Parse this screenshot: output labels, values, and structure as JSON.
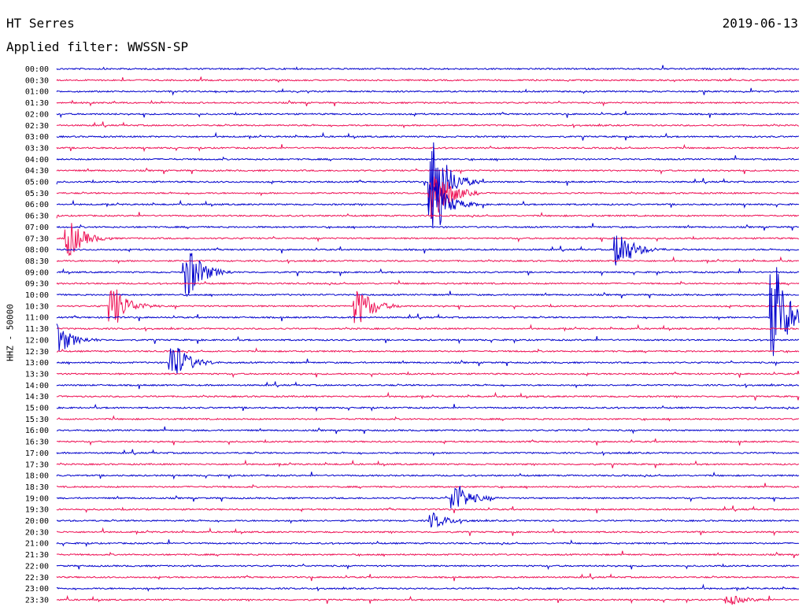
{
  "header": {
    "station": "HT Serres",
    "date": "2019-06-13",
    "filter": "Applied filter: WWSSN-SP"
  },
  "chart_data": {
    "type": "line",
    "ylabel": "HHZ - 50000",
    "row_labels": [
      "00:00",
      "00:30",
      "01:00",
      "01:30",
      "02:00",
      "02:30",
      "03:00",
      "03:30",
      "04:00",
      "04:30",
      "05:00",
      "05:30",
      "06:00",
      "06:30",
      "07:00",
      "07:30",
      "08:00",
      "08:30",
      "09:00",
      "09:30",
      "10:00",
      "10:30",
      "11:00",
      "11:30",
      "12:00",
      "12:30",
      "13:00",
      "13:30",
      "14:00",
      "14:30",
      "15:00",
      "15:30",
      "16:00",
      "16:30",
      "17:00",
      "17:30",
      "18:00",
      "18:30",
      "19:00",
      "19:30",
      "20:00",
      "20:30",
      "21:00",
      "21:30",
      "22:00",
      "22:30",
      "23:00",
      "23:30"
    ],
    "colors": {
      "even_rows": "#0000cc",
      "odd_rows": "#ee1155"
    },
    "events": [
      {
        "row": 10,
        "t": 0.51,
        "amp": 3.0
      },
      {
        "row": 11,
        "t": 0.51,
        "amp": 2.4
      },
      {
        "row": 12,
        "t": 0.51,
        "amp": 1.8
      },
      {
        "row": 15,
        "t": 0.02,
        "amp": 1.2
      },
      {
        "row": 16,
        "t": 0.76,
        "amp": 1.3
      },
      {
        "row": 18,
        "t": 0.18,
        "amp": 1.7
      },
      {
        "row": 21,
        "t": 0.08,
        "amp": 1.3
      },
      {
        "row": 21,
        "t": 0.41,
        "amp": 1.2
      },
      {
        "row": 22,
        "t": 0.97,
        "amp": 3.5
      },
      {
        "row": 24,
        "t": 0.0,
        "amp": 1.2
      },
      {
        "row": 26,
        "t": 0.16,
        "amp": 1.4
      },
      {
        "row": 38,
        "t": 0.54,
        "amp": 1.0
      },
      {
        "row": 40,
        "t": 0.51,
        "amp": 0.5
      },
      {
        "row": 47,
        "t": 0.91,
        "amp": 0.3
      }
    ]
  }
}
